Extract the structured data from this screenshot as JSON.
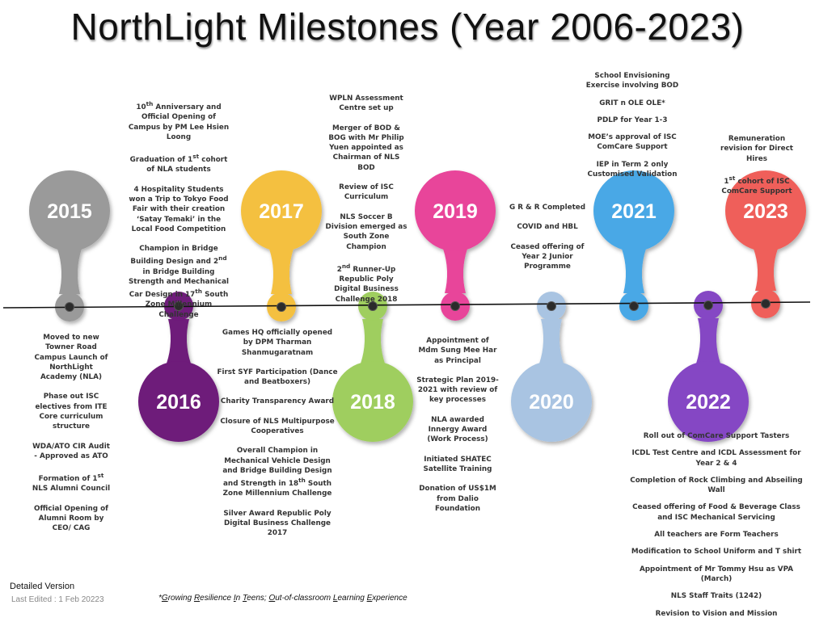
{
  "title": "NorthLight Milestones (Year 2006-2023)",
  "footer": {
    "version": "Detailed Version",
    "edited": "Last Edited : 1 Feb 20223",
    "acronym_html": "*<u>G</u>rowing <u>R</u>esilience <u>I</u>n <u>T</u>eens; <u>O</u>ut-of-classroom <u>L</u>earning <u>E</u>xperience"
  },
  "years": [
    {
      "year": "2015",
      "color": "#9a9a9a",
      "direction": "up",
      "milestones": [
        "Moved to new Towner Road Campus Launch of NorthLight Academy (NLA)",
        "Phase out ISC electives from ITE Core curriculum structure",
        "WDA/ATO CIR Audit - Approved as ATO",
        "Formation of 1<sup>st</sup> NLS Alumni Council",
        "Official Opening of Alumni Room by CEO/ CAG"
      ]
    },
    {
      "year": "2016",
      "color": "#6e1a7a",
      "direction": "down",
      "milestones": [
        "10<sup>th</sup> Anniversary and Official Opening of Campus by PM Lee Hsien Loong",
        "Graduation of 1<sup>st</sup> cohort of NLA students",
        "4 Hospitality Students won a Trip to Tokyo Food Fair with their creation ‘Satay Temaki’ in the Local Food Competition",
        "Champion in Bridge Building Design and 2<sup>nd</sup> in Bridge Building Strength and Mechanical Car Design in 17<sup>th</sup> South Zone Millennium Challenge"
      ]
    },
    {
      "year": "2017",
      "color": "#f4c040",
      "direction": "up",
      "milestones": [
        "Games HQ officially opened by DPM Tharman Shanmugaratnam",
        "First SYF Participation (Dance and Beatboxers)",
        "Charity Transparency Award",
        "Closure of NLS Multipurpose Cooperatives",
        "Overall Champion in Mechanical Vehicle Design and Bridge Building Design and Strength in 18<sup>th</sup> South Zone Millennium Challenge",
        "Silver Award Republic Poly Digital Business Challenge 2017"
      ]
    },
    {
      "year": "2018",
      "color": "#9fce5e",
      "direction": "down",
      "milestones": [
        "WPLN Assessment Centre set up",
        "Merger of BOD &amp; BOG with Mr Philip Yuen appointed as Chairman of NLS BOD",
        "Review of ISC Curriculum",
        "NLS Soccer B Division emerged as South Zone Champion",
        "2<sup>nd</sup> Runner-Up Republic Poly Digital Business Challenge 2018"
      ]
    },
    {
      "year": "2019",
      "color": "#e8449a",
      "direction": "up",
      "milestones": [
        "Appointment of Mdm Sung Mee Har as Principal",
        "Strategic Plan 2019-2021 with review of key processes",
        "NLA awarded Innergy Award (Work Process)",
        "Initiated SHATEC Satellite Training",
        "Donation of US$1M from Dalio Foundation"
      ]
    },
    {
      "year": "2020",
      "color": "#a9c4e2",
      "direction": "down",
      "milestones": [
        "G R &amp; R Completed",
        "COVID and HBL",
        "Ceased offering of Year 2 Junior Programme"
      ]
    },
    {
      "year": "2021",
      "color": "#4aa8e6",
      "direction": "up",
      "milestones": [
        "School Envisioning Exercise involving BOD",
        "GRIT n OLE OLE*",
        "PDLP for Year 1-3",
        "MOE’s approval of ISC ComCare Support",
        "IEP in Term 2 only Customised Validation"
      ]
    },
    {
      "year": "2022",
      "color": "#8546c4",
      "direction": "down",
      "milestones": [
        "Roll out of ComCare Support Tasters",
        "ICDL Test Centre and ICDL Assessment for Year 2 &amp; 4",
        "Completion of Rock Climbing and Abseiling Wall",
        "Ceased offering of Food &amp; Beverage Class and ISC Mechanical Servicing",
        "All teachers are Form Teachers",
        "Modification to School Uniform and T shirt",
        "Appointment of Mr Tommy Hsu as VPA (March)",
        "NLS Staff Traits (1242)",
        "Revision to Vision and Mission"
      ]
    },
    {
      "year": "2023",
      "color": "#ef5f5a",
      "direction": "up",
      "milestones": [
        "Remuneration revision for Direct Hires",
        "1<sup>st</sup> cohort of ISC ComCare Support"
      ]
    }
  ]
}
